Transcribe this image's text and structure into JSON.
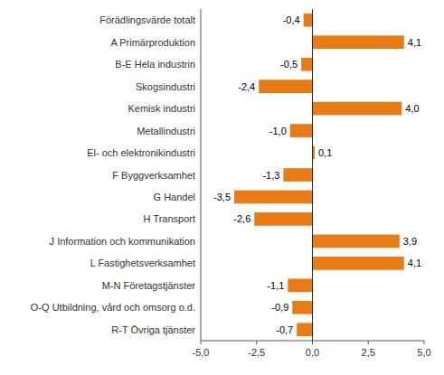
{
  "chart_data": {
    "type": "bar",
    "orientation": "horizontal",
    "categories": [
      "Förädlingsvärde totalt",
      "A Primärproduktion",
      "B-E Hela industrin",
      "Skogsindustri",
      "Kemisk industri",
      "Metallindustri",
      "El- och elektronikindustri",
      "F Byggverksamhet",
      "G Handel",
      "H Transport",
      "J Information och kommunikation",
      "L Fastighetsverksamhet",
      "M-N Företagstjänster",
      "O-Q Utbildning, vård och omsorg o.d.",
      "R-T Övriga tjänster"
    ],
    "values": [
      -0.4,
      4.1,
      -0.5,
      -2.4,
      4.0,
      -1.0,
      0.1,
      -1.3,
      -3.5,
      -2.6,
      3.9,
      4.1,
      -1.1,
      -0.9,
      -0.7
    ],
    "value_labels": [
      "-0,4",
      "4,1",
      "-0,5",
      "-2,4",
      "4,0",
      "-1,0",
      "0,1",
      "-1,3",
      "-3,5",
      "-2,6",
      "3,9",
      "4,1",
      "-1,1",
      "-0,9",
      "-0,7"
    ],
    "data_labels": true,
    "color": "#E87B14",
    "xlim": [
      -5.0,
      5.0
    ],
    "xticks": [
      {
        "value": -5.0,
        "label": "-5,0"
      },
      {
        "value": -2.5,
        "label": "-2,5"
      },
      {
        "value": 0.0,
        "label": "0,0"
      },
      {
        "value": 2.5,
        "label": "2,5"
      },
      {
        "value": 5.0,
        "label": "5,0"
      }
    ],
    "grid": false
  }
}
